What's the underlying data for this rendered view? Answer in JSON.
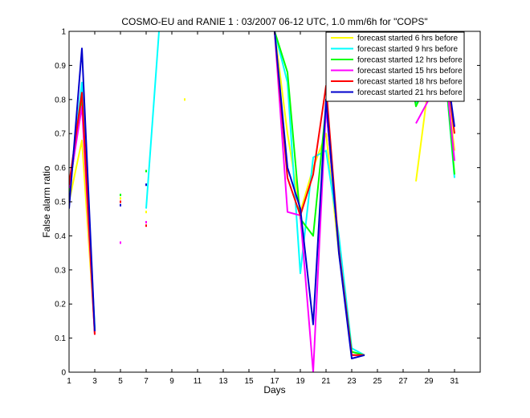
{
  "chart_data": {
    "type": "line",
    "title": "COSMO-EU and RANIE 1 : 03/2007 06-12 UTC, 1.0 mm/6h for \"COPS\"",
    "xlabel": "Days",
    "ylabel": "False alarm ratio",
    "xlim": [
      1,
      33
    ],
    "ylim": [
      0,
      1
    ],
    "xticks": [
      1,
      3,
      5,
      7,
      9,
      11,
      13,
      15,
      17,
      19,
      21,
      23,
      25,
      27,
      29,
      31
    ],
    "yticks": [
      0,
      0.1,
      0.2,
      0.3,
      0.4,
      0.5,
      0.6,
      0.7,
      0.8,
      0.9,
      1
    ],
    "legend_position": "top-right",
    "grid": false,
    "x": [
      1,
      2,
      3,
      4,
      5,
      6,
      7,
      8,
      9,
      10,
      11,
      12,
      13,
      14,
      15,
      16,
      17,
      18,
      19,
      20,
      21,
      22,
      23,
      24,
      25,
      26,
      27,
      28,
      29,
      30,
      31
    ],
    "series": [
      {
        "name": "forecast started 6 hrs before",
        "color": "#ffff00",
        "values": [
          0.5,
          0.68,
          0.12,
          null,
          0.51,
          null,
          0.47,
          null,
          null,
          0.8,
          null,
          null,
          null,
          null,
          null,
          null,
          1.0,
          0.7,
          0.47,
          0.6,
          0.7,
          0.35,
          0.06,
          0.05,
          null,
          null,
          null,
          0.56,
          0.85,
          0.98,
          0.65
        ]
      },
      {
        "name": "forecast started 9 hrs before",
        "color": "#00ffff",
        "values": [
          0.52,
          0.85,
          0.13,
          null,
          0.52,
          null,
          0.48,
          1.0,
          null,
          null,
          null,
          null,
          null,
          null,
          null,
          null,
          1.0,
          0.85,
          0.29,
          0.63,
          0.65,
          0.4,
          0.07,
          0.05,
          null,
          null,
          null,
          0.79,
          0.88,
          1.0,
          0.57
        ]
      },
      {
        "name": "forecast started 12 hrs before",
        "color": "#00ff00",
        "values": [
          0.53,
          0.8,
          0.12,
          null,
          0.52,
          null,
          0.59,
          null,
          null,
          null,
          null,
          null,
          null,
          null,
          null,
          null,
          1.0,
          0.88,
          0.45,
          0.4,
          0.78,
          0.36,
          0.06,
          0.05,
          null,
          null,
          1.0,
          0.78,
          0.86,
          1.0,
          0.58
        ]
      },
      {
        "name": "forecast started 15 hrs before",
        "color": "#ff00ff",
        "values": [
          0.54,
          0.78,
          0.11,
          null,
          0.38,
          null,
          0.44,
          null,
          null,
          null,
          null,
          null,
          null,
          null,
          null,
          null,
          1.0,
          0.47,
          0.46,
          0.0,
          0.78,
          0.36,
          0.05,
          0.05,
          null,
          null,
          null,
          0.73,
          0.8,
          1.0,
          0.62
        ]
      },
      {
        "name": "forecast started 18 hrs before",
        "color": "#ff0000",
        "values": [
          0.55,
          0.82,
          0.11,
          null,
          0.5,
          null,
          0.43,
          null,
          null,
          null,
          null,
          null,
          null,
          null,
          null,
          null,
          1.0,
          0.57,
          0.46,
          0.58,
          0.84,
          0.36,
          0.05,
          0.05,
          null,
          null,
          null,
          0.9,
          0.84,
          1.0,
          0.7
        ]
      },
      {
        "name": "forecast started 21 hrs before",
        "color": "#0000cc",
        "values": [
          0.48,
          0.95,
          0.12,
          null,
          0.49,
          null,
          0.55,
          null,
          null,
          null,
          null,
          null,
          null,
          null,
          null,
          null,
          1.0,
          0.6,
          0.48,
          0.14,
          0.8,
          0.35,
          0.04,
          0.05,
          null,
          null,
          null,
          0.94,
          0.88,
          1.0,
          0.72
        ]
      }
    ]
  }
}
